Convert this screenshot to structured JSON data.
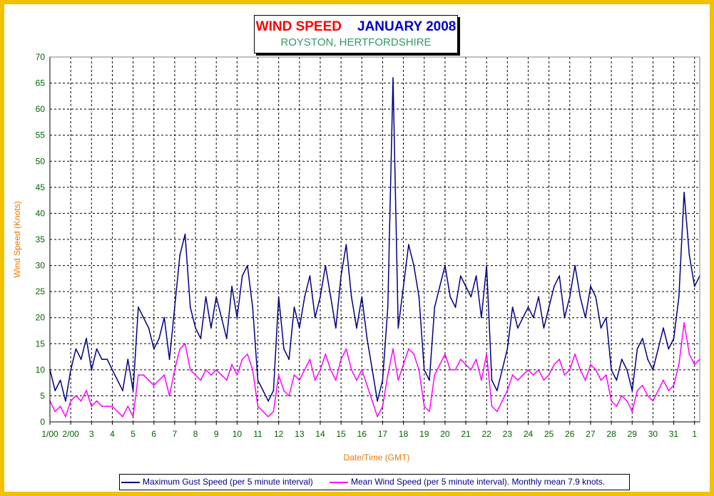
{
  "title": "WIND SPEED",
  "title_month": "JANUARY 2008",
  "subtitle": "ROYSTON, HERTFORDSHIRE",
  "colors": {
    "frame": "#f2c200",
    "gust": "#000080",
    "mean": "#ff00ff",
    "axis_text": "#006400",
    "axis_title": "#f07800",
    "grid": "#000000"
  },
  "legend": {
    "gust": "Maximum Gust Speed (per 5 minute interval)",
    "mean": "Mean Wind Speed (per 5 minute interval). Monthly mean 7.9 knots."
  },
  "chart_data": {
    "type": "line",
    "xlabel": "Date/Time (GMT)",
    "ylabel": "Wind Speed (Knots)",
    "ylim": [
      0,
      70
    ],
    "yticks": [
      0,
      5,
      10,
      15,
      20,
      25,
      30,
      35,
      40,
      45,
      50,
      55,
      60,
      65,
      70
    ],
    "xlim": [
      "2008-01-01 00:00",
      "2008-02-01 06:00"
    ],
    "grid": true,
    "legend_position": "bottom",
    "x_tick_labels": [
      "1/00",
      "2/00",
      "3",
      "4",
      "5",
      "6",
      "7",
      "8",
      "9",
      "10",
      "11",
      "12",
      "13",
      "14",
      "15",
      "16",
      "17",
      "18",
      "19",
      "20",
      "21",
      "22",
      "23",
      "24",
      "25",
      "26",
      "27",
      "28",
      "29",
      "30",
      "31",
      "1"
    ],
    "x_tick_days": [
      "2008-01-01",
      "2008-01-02",
      "2008-01-03",
      "2008-01-04",
      "2008-01-05",
      "2008-01-06",
      "2008-01-07",
      "2008-01-08",
      "2008-01-09",
      "2008-01-10",
      "2008-01-11",
      "2008-01-12",
      "2008-01-13",
      "2008-01-14",
      "2008-01-15",
      "2008-01-16",
      "2008-01-17",
      "2008-01-18",
      "2008-01-19",
      "2008-01-20",
      "2008-01-21",
      "2008-01-22",
      "2008-01-23",
      "2008-01-24",
      "2008-01-25",
      "2008-01-26",
      "2008-01-27",
      "2008-01-28",
      "2008-01-29",
      "2008-01-30",
      "2008-01-31",
      "2008-02-01"
    ],
    "series": [
      {
        "name": "Maximum Gust Speed (per 5 minute interval)",
        "color": "#000080",
        "x": [
          "2008-01-01 00:00",
          "2008-01-01 06:00",
          "2008-01-01 12:00",
          "2008-01-01 18:00",
          "2008-01-02 00:00",
          "2008-01-02 06:00",
          "2008-01-02 12:00",
          "2008-01-02 18:00",
          "2008-01-03 00:00",
          "2008-01-03 06:00",
          "2008-01-03 12:00",
          "2008-01-03 18:00",
          "2008-01-04 00:00",
          "2008-01-04 06:00",
          "2008-01-04 12:00",
          "2008-01-04 18:00",
          "2008-01-05 00:00",
          "2008-01-05 06:00",
          "2008-01-05 12:00",
          "2008-01-05 18:00",
          "2008-01-06 00:00",
          "2008-01-06 06:00",
          "2008-01-06 12:00",
          "2008-01-06 18:00",
          "2008-01-07 00:00",
          "2008-01-07 06:00",
          "2008-01-07 12:00",
          "2008-01-07 18:00",
          "2008-01-08 00:00",
          "2008-01-08 06:00",
          "2008-01-08 12:00",
          "2008-01-08 18:00",
          "2008-01-09 00:00",
          "2008-01-09 06:00",
          "2008-01-09 12:00",
          "2008-01-09 18:00",
          "2008-01-10 00:00",
          "2008-01-10 06:00",
          "2008-01-10 12:00",
          "2008-01-10 18:00",
          "2008-01-11 00:00",
          "2008-01-11 06:00",
          "2008-01-11 12:00",
          "2008-01-11 18:00",
          "2008-01-12 00:00",
          "2008-01-12 06:00",
          "2008-01-12 12:00",
          "2008-01-12 18:00",
          "2008-01-13 00:00",
          "2008-01-13 06:00",
          "2008-01-13 12:00",
          "2008-01-13 18:00",
          "2008-01-14 00:00",
          "2008-01-14 06:00",
          "2008-01-14 12:00",
          "2008-01-14 18:00",
          "2008-01-15 00:00",
          "2008-01-15 06:00",
          "2008-01-15 12:00",
          "2008-01-15 18:00",
          "2008-01-16 00:00",
          "2008-01-16 06:00",
          "2008-01-16 12:00",
          "2008-01-16 18:00",
          "2008-01-17 00:00",
          "2008-01-17 06:00",
          "2008-01-17 12:00",
          "2008-01-17 18:00",
          "2008-01-18 00:00",
          "2008-01-18 06:00",
          "2008-01-18 12:00",
          "2008-01-18 18:00",
          "2008-01-19 00:00",
          "2008-01-19 06:00",
          "2008-01-19 12:00",
          "2008-01-19 18:00",
          "2008-01-20 00:00",
          "2008-01-20 06:00",
          "2008-01-20 12:00",
          "2008-01-20 18:00",
          "2008-01-21 00:00",
          "2008-01-21 06:00",
          "2008-01-21 12:00",
          "2008-01-21 18:00",
          "2008-01-22 00:00",
          "2008-01-22 06:00",
          "2008-01-22 12:00",
          "2008-01-22 18:00",
          "2008-01-23 00:00",
          "2008-01-23 06:00",
          "2008-01-23 12:00",
          "2008-01-23 18:00",
          "2008-01-24 00:00",
          "2008-01-24 06:00",
          "2008-01-24 12:00",
          "2008-01-24 18:00",
          "2008-01-25 00:00",
          "2008-01-25 06:00",
          "2008-01-25 12:00",
          "2008-01-25 18:00",
          "2008-01-26 00:00",
          "2008-01-26 06:00",
          "2008-01-26 12:00",
          "2008-01-26 18:00",
          "2008-01-27 00:00",
          "2008-01-27 06:00",
          "2008-01-27 12:00",
          "2008-01-27 18:00",
          "2008-01-28 00:00",
          "2008-01-28 06:00",
          "2008-01-28 12:00",
          "2008-01-28 18:00",
          "2008-01-29 00:00",
          "2008-01-29 06:00",
          "2008-01-29 12:00",
          "2008-01-29 18:00",
          "2008-01-30 00:00",
          "2008-01-30 06:00",
          "2008-01-30 12:00",
          "2008-01-30 18:00",
          "2008-01-31 00:00",
          "2008-01-31 06:00",
          "2008-01-31 12:00",
          "2008-01-31 18:00",
          "2008-02-01 00:00",
          "2008-02-01 06:00"
        ],
        "y": [
          10,
          6,
          8,
          4,
          10,
          14,
          12,
          16,
          10,
          14,
          12,
          12,
          10,
          8,
          6,
          12,
          6,
          22,
          20,
          18,
          14,
          16,
          20,
          12,
          22,
          32,
          36,
          22,
          18,
          16,
          24,
          18,
          24,
          20,
          16,
          26,
          20,
          28,
          30,
          22,
          8,
          6,
          4,
          6,
          24,
          14,
          12,
          22,
          18,
          24,
          28,
          20,
          24,
          30,
          24,
          18,
          28,
          34,
          24,
          18,
          24,
          16,
          10,
          4,
          8,
          22,
          66,
          18,
          26,
          34,
          30,
          24,
          10,
          8,
          22,
          26,
          30,
          24,
          22,
          28,
          26,
          24,
          28,
          20,
          30,
          8,
          6,
          10,
          14,
          22,
          18,
          20,
          22,
          20,
          24,
          18,
          22,
          26,
          28,
          20,
          24,
          30,
          24,
          20,
          26,
          24,
          18,
          20,
          10,
          8,
          12,
          10,
          6,
          14,
          16,
          12,
          10,
          14,
          18,
          14,
          16,
          24,
          44,
          32,
          26,
          28
        ]
      },
      {
        "name": "Mean Wind Speed (per 5 minute interval). Monthly mean 7.9 knots.",
        "color": "#ff00ff",
        "x": [
          "2008-01-01 00:00",
          "2008-01-01 06:00",
          "2008-01-01 12:00",
          "2008-01-01 18:00",
          "2008-01-02 00:00",
          "2008-01-02 06:00",
          "2008-01-02 12:00",
          "2008-01-02 18:00",
          "2008-01-03 00:00",
          "2008-01-03 06:00",
          "2008-01-03 12:00",
          "2008-01-03 18:00",
          "2008-01-04 00:00",
          "2008-01-04 06:00",
          "2008-01-04 12:00",
          "2008-01-04 18:00",
          "2008-01-05 00:00",
          "2008-01-05 06:00",
          "2008-01-05 12:00",
          "2008-01-05 18:00",
          "2008-01-06 00:00",
          "2008-01-06 06:00",
          "2008-01-06 12:00",
          "2008-01-06 18:00",
          "2008-01-07 00:00",
          "2008-01-07 06:00",
          "2008-01-07 12:00",
          "2008-01-07 18:00",
          "2008-01-08 00:00",
          "2008-01-08 06:00",
          "2008-01-08 12:00",
          "2008-01-08 18:00",
          "2008-01-09 00:00",
          "2008-01-09 06:00",
          "2008-01-09 12:00",
          "2008-01-09 18:00",
          "2008-01-10 00:00",
          "2008-01-10 06:00",
          "2008-01-10 12:00",
          "2008-01-10 18:00",
          "2008-01-11 00:00",
          "2008-01-11 06:00",
          "2008-01-11 12:00",
          "2008-01-11 18:00",
          "2008-01-12 00:00",
          "2008-01-12 06:00",
          "2008-01-12 12:00",
          "2008-01-12 18:00",
          "2008-01-13 00:00",
          "2008-01-13 06:00",
          "2008-01-13 12:00",
          "2008-01-13 18:00",
          "2008-01-14 00:00",
          "2008-01-14 06:00",
          "2008-01-14 12:00",
          "2008-01-14 18:00",
          "2008-01-15 00:00",
          "2008-01-15 06:00",
          "2008-01-15 12:00",
          "2008-01-15 18:00",
          "2008-01-16 00:00",
          "2008-01-16 06:00",
          "2008-01-16 12:00",
          "2008-01-16 18:00",
          "2008-01-17 00:00",
          "2008-01-17 06:00",
          "2008-01-17 12:00",
          "2008-01-17 18:00",
          "2008-01-18 00:00",
          "2008-01-18 06:00",
          "2008-01-18 12:00",
          "2008-01-18 18:00",
          "2008-01-19 00:00",
          "2008-01-19 06:00",
          "2008-01-19 12:00",
          "2008-01-19 18:00",
          "2008-01-20 00:00",
          "2008-01-20 06:00",
          "2008-01-20 12:00",
          "2008-01-20 18:00",
          "2008-01-21 00:00",
          "2008-01-21 06:00",
          "2008-01-21 12:00",
          "2008-01-21 18:00",
          "2008-01-22 00:00",
          "2008-01-22 06:00",
          "2008-01-22 12:00",
          "2008-01-22 18:00",
          "2008-01-23 00:00",
          "2008-01-23 06:00",
          "2008-01-23 12:00",
          "2008-01-23 18:00",
          "2008-01-24 00:00",
          "2008-01-24 06:00",
          "2008-01-24 12:00",
          "2008-01-24 18:00",
          "2008-01-25 00:00",
          "2008-01-25 06:00",
          "2008-01-25 12:00",
          "2008-01-25 18:00",
          "2008-01-26 00:00",
          "2008-01-26 06:00",
          "2008-01-26 12:00",
          "2008-01-26 18:00",
          "2008-01-27 00:00",
          "2008-01-27 06:00",
          "2008-01-27 12:00",
          "2008-01-27 18:00",
          "2008-01-28 00:00",
          "2008-01-28 06:00",
          "2008-01-28 12:00",
          "2008-01-28 18:00",
          "2008-01-29 00:00",
          "2008-01-29 06:00",
          "2008-01-29 12:00",
          "2008-01-29 18:00",
          "2008-01-30 00:00",
          "2008-01-30 06:00",
          "2008-01-30 12:00",
          "2008-01-30 18:00",
          "2008-01-31 00:00",
          "2008-01-31 06:00",
          "2008-01-31 12:00",
          "2008-01-31 18:00",
          "2008-02-01 00:00",
          "2008-02-01 06:00"
        ],
        "y": [
          4,
          2,
          3,
          1,
          4,
          5,
          4,
          6,
          3,
          4,
          3,
          3,
          3,
          2,
          1,
          3,
          1,
          9,
          9,
          8,
          7,
          8,
          9,
          5,
          10,
          14,
          15,
          10,
          9,
          8,
          10,
          9,
          10,
          9,
          8,
          11,
          9,
          12,
          13,
          10,
          3,
          2,
          1,
          2,
          9,
          6,
          5,
          9,
          8,
          10,
          12,
          8,
          10,
          13,
          10,
          8,
          12,
          14,
          10,
          8,
          10,
          7,
          4,
          1,
          3,
          9,
          14,
          8,
          11,
          14,
          13,
          10,
          3,
          2,
          9,
          11,
          13,
          10,
          10,
          12,
          11,
          10,
          12,
          8,
          13,
          3,
          2,
          4,
          6,
          9,
          8,
          9,
          10,
          9,
          10,
          8,
          9,
          11,
          12,
          9,
          10,
          13,
          10,
          8,
          11,
          10,
          8,
          9,
          4,
          3,
          5,
          4,
          2,
          6,
          7,
          5,
          4,
          6,
          8,
          6,
          7,
          11,
          19,
          13,
          11,
          12
        ]
      }
    ]
  }
}
